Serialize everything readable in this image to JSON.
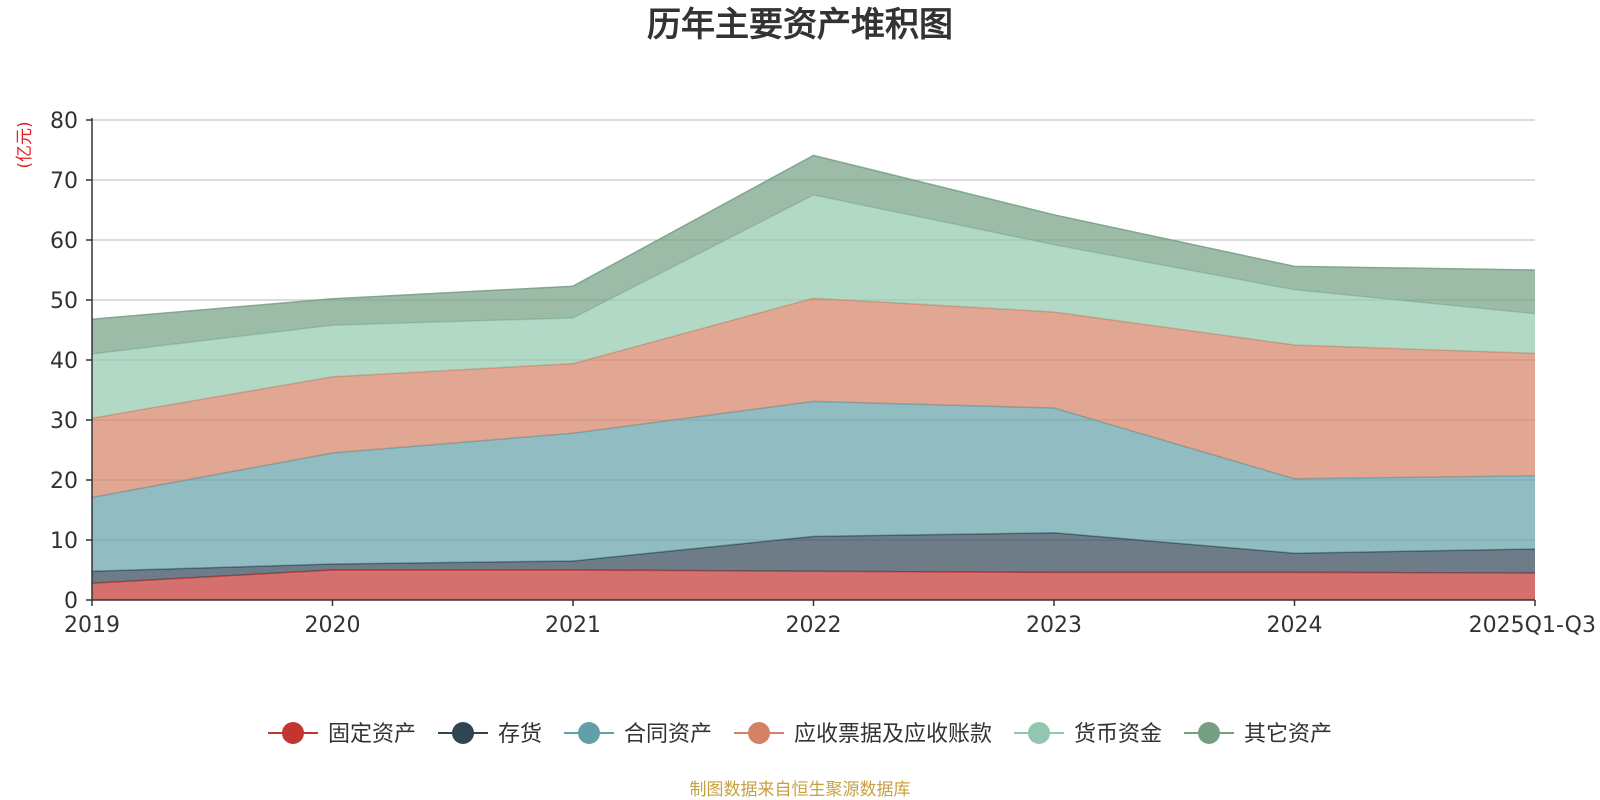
{
  "chart_data": {
    "type": "area",
    "title": "历年主要资产堆积图",
    "ylabel": "(亿元)",
    "xlabel": "",
    "ylim": [
      0,
      80
    ],
    "yticks": [
      0,
      10,
      20,
      30,
      40,
      50,
      60,
      70,
      80
    ],
    "grid": true,
    "stacked": true,
    "legend_position": "bottom-center",
    "categories": [
      "2019",
      "2020",
      "2021",
      "2022",
      "2023",
      "2024",
      "2025Q1-Q3"
    ],
    "series": [
      {
        "name": "固定资产",
        "color": "#c23531",
        "values": [
          2.8,
          5.0,
          5.0,
          4.8,
          4.6,
          4.6,
          4.5
        ]
      },
      {
        "name": "存货",
        "color": "#2f4554",
        "values": [
          2.0,
          1.0,
          1.5,
          5.8,
          6.6,
          3.2,
          4.0
        ]
      },
      {
        "name": "合同资产",
        "color": "#61a0a8",
        "values": [
          12.3,
          18.5,
          21.3,
          22.5,
          20.8,
          12.4,
          12.2
        ]
      },
      {
        "name": "应收票据及应收账款",
        "color": "#d48265",
        "values": [
          13.2,
          12.7,
          11.6,
          17.2,
          16.0,
          22.3,
          20.4
        ]
      },
      {
        "name": "货币资金",
        "color": "#91c7ae",
        "values": [
          10.7,
          8.6,
          7.6,
          17.2,
          11.2,
          9.2,
          6.6
        ]
      },
      {
        "name": "其它资产",
        "color": "#749f83",
        "values": [
          5.8,
          4.4,
          5.3,
          6.6,
          5.0,
          3.9,
          7.3
        ]
      }
    ]
  },
  "footer": "制图数据来自恒生聚源数据库"
}
